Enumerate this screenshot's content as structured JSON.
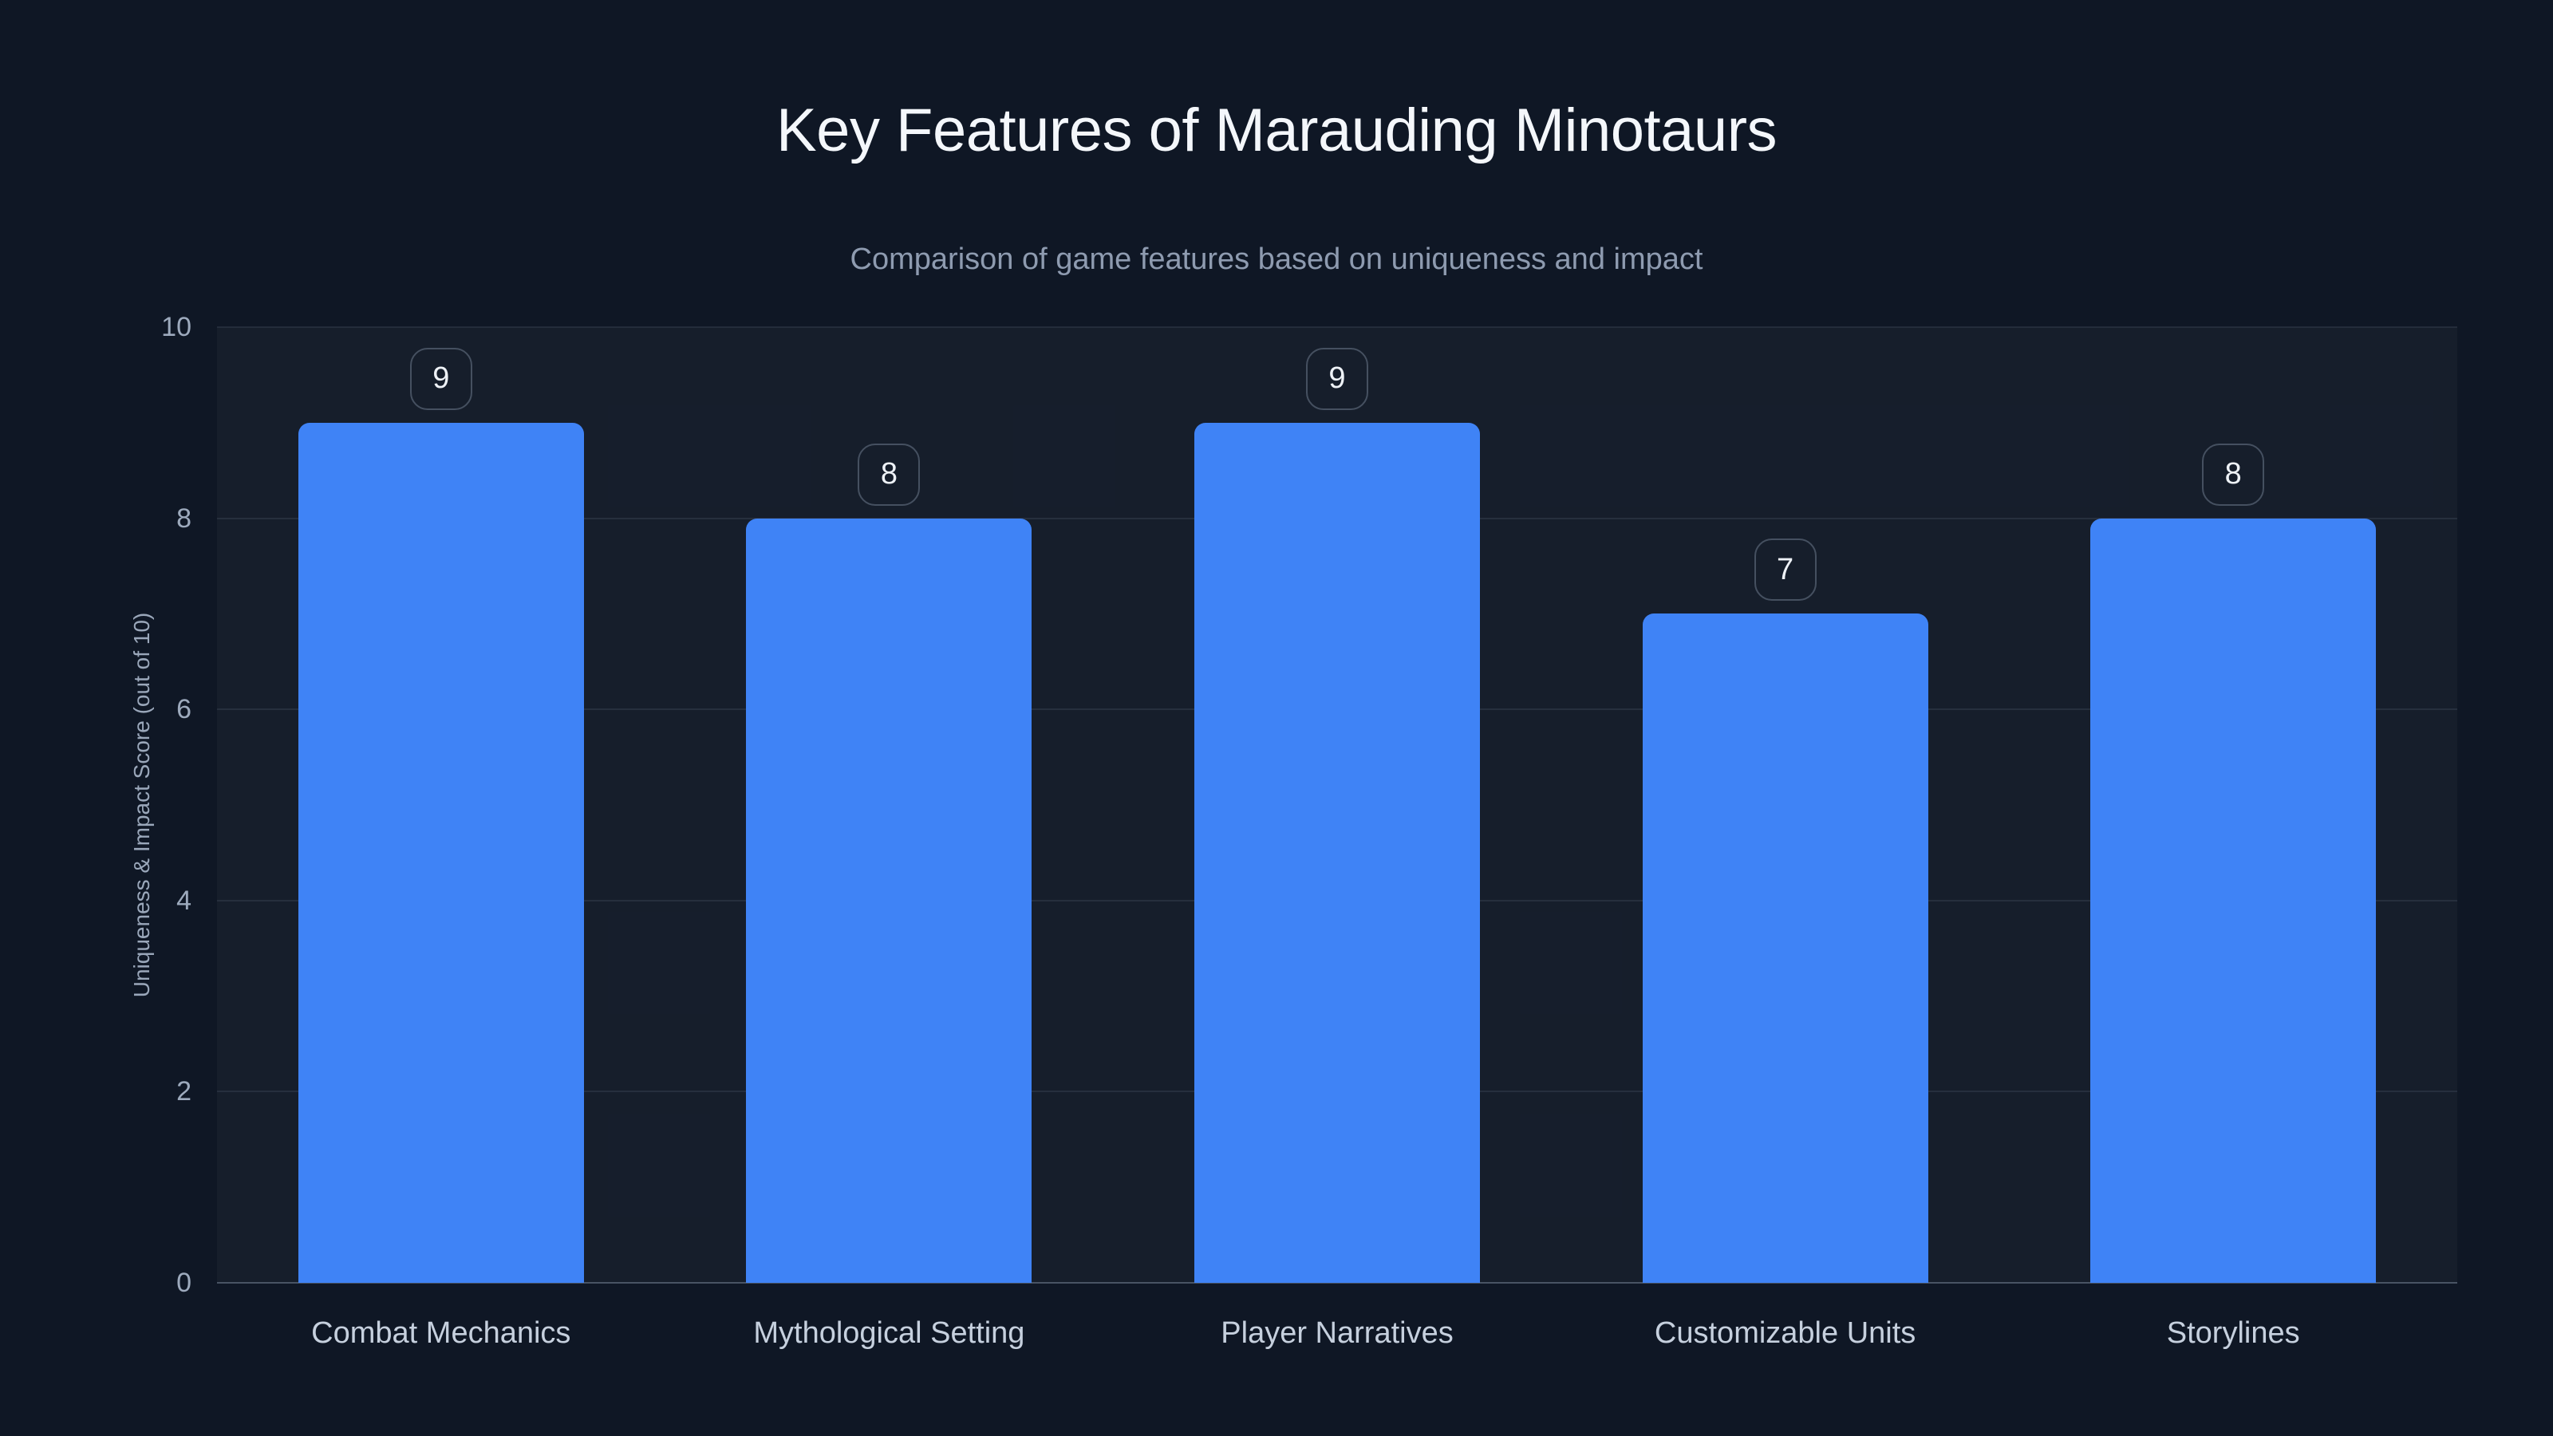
{
  "chart_data": {
    "type": "bar",
    "title": "Key Features of Marauding Minotaurs",
    "subtitle": "Comparison of game features based on uniqueness and impact",
    "ylabel": "Uniqueness & Impact Score (out of 10)",
    "xlabel": "",
    "categories": [
      "Combat Mechanics",
      "Mythological Setting",
      "Player Narratives",
      "Customizable Units",
      "Storylines"
    ],
    "values": [
      9,
      8,
      9,
      7,
      8
    ],
    "value_labels": [
      "9",
      "8",
      "9",
      "7",
      "8"
    ],
    "yticks": [
      "0",
      "2",
      "4",
      "6",
      "8",
      "10"
    ],
    "ylim": [
      0,
      10
    ],
    "grid": "horizontal",
    "legend": "none"
  },
  "colors": {
    "background": "#0f1725",
    "bar": "#3f83f6",
    "title": "#f4f7fb",
    "subtitle": "#8e9bb0",
    "tick": "#9daabd",
    "xlabel": "#c6d0de",
    "ytitle": "#9aa7ba",
    "badge_border": "rgba(148,163,184,0.38)",
    "badge_text": "#eef2f7",
    "grid": "rgba(148,163,184,0.13)",
    "baseline": "rgba(148,163,184,0.42)"
  }
}
